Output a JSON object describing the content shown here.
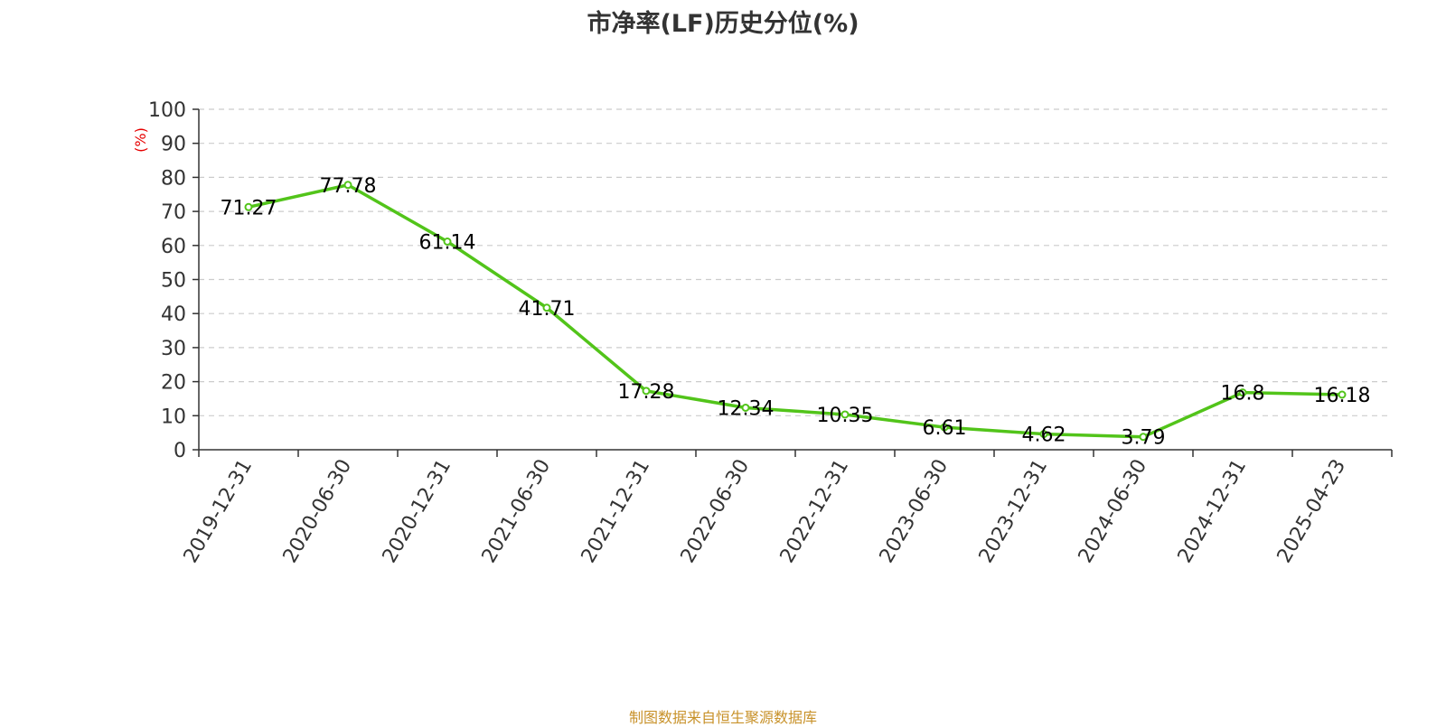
{
  "chart_data": {
    "type": "line",
    "title": "市净率(LF)历史分位(%)",
    "ylabel": "(%)",
    "xlabel": "",
    "categories": [
      "2019-12-31",
      "2020-06-30",
      "2020-12-31",
      "2021-06-30",
      "2021-12-31",
      "2022-06-30",
      "2022-12-31",
      "2023-06-30",
      "2023-12-31",
      "2024-06-30",
      "2024-12-31",
      "2025-04-23"
    ],
    "series": [
      {
        "values": [
          71.27,
          77.78,
          61.14,
          41.71,
          17.28,
          12.34,
          10.35,
          6.61,
          4.62,
          3.79,
          16.8,
          16.18
        ]
      }
    ],
    "data_labels": [
      "71.27",
      "77.78",
      "61.14",
      "41.71",
      "17.28",
      "12.34",
      "10.35",
      "6.61",
      "4.62",
      "3.79",
      "16.8",
      "16.18"
    ],
    "ylim": [
      0,
      100
    ],
    "yticks": [
      0,
      10,
      20,
      30,
      40,
      50,
      60,
      70,
      80,
      90,
      100
    ],
    "grid": true,
    "legend": "none",
    "colors": {
      "line": "#52c41a",
      "grid": "#cccccc",
      "axis": "#333333",
      "ylabel": "#e60000",
      "text": "#333333"
    }
  },
  "footer": {
    "note": "制图数据来自恒生聚源数据库"
  }
}
